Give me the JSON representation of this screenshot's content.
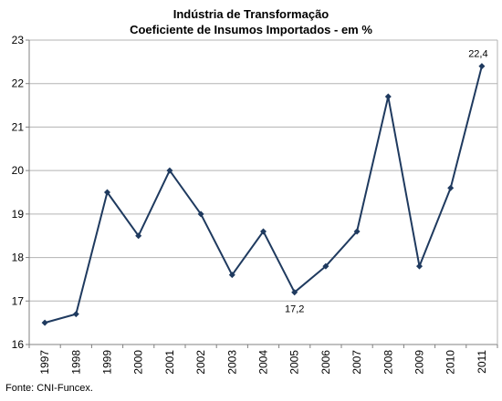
{
  "chart_data": {
    "type": "line",
    "title": "Indústria de Transformação",
    "subtitle": "Coeficiente de Insumos Importados - em %",
    "x": [
      "1997",
      "1998",
      "1999",
      "2000",
      "2001",
      "2002",
      "2003",
      "2004",
      "2005",
      "2006",
      "2007",
      "2008",
      "2009",
      "2010",
      "2011"
    ],
    "series": [
      {
        "values": [
          16.5,
          16.7,
          19.5,
          18.5,
          20.0,
          19.0,
          17.6,
          18.6,
          17.2,
          17.8,
          18.6,
          21.7,
          17.8,
          19.6,
          22.4
        ]
      }
    ],
    "ylim": [
      16,
      23
    ],
    "yticks": [
      16,
      17,
      18,
      19,
      20,
      21,
      22,
      23
    ],
    "grid": true,
    "annotations": [
      {
        "x": "2005",
        "text": "17,2",
        "position": "below"
      },
      {
        "x": "2011",
        "text": "22,4",
        "position": "above"
      }
    ],
    "line_color": "#1f3a5f",
    "grid_color": "#b3b3b3"
  },
  "source": "Fonte: CNI-Funcex."
}
